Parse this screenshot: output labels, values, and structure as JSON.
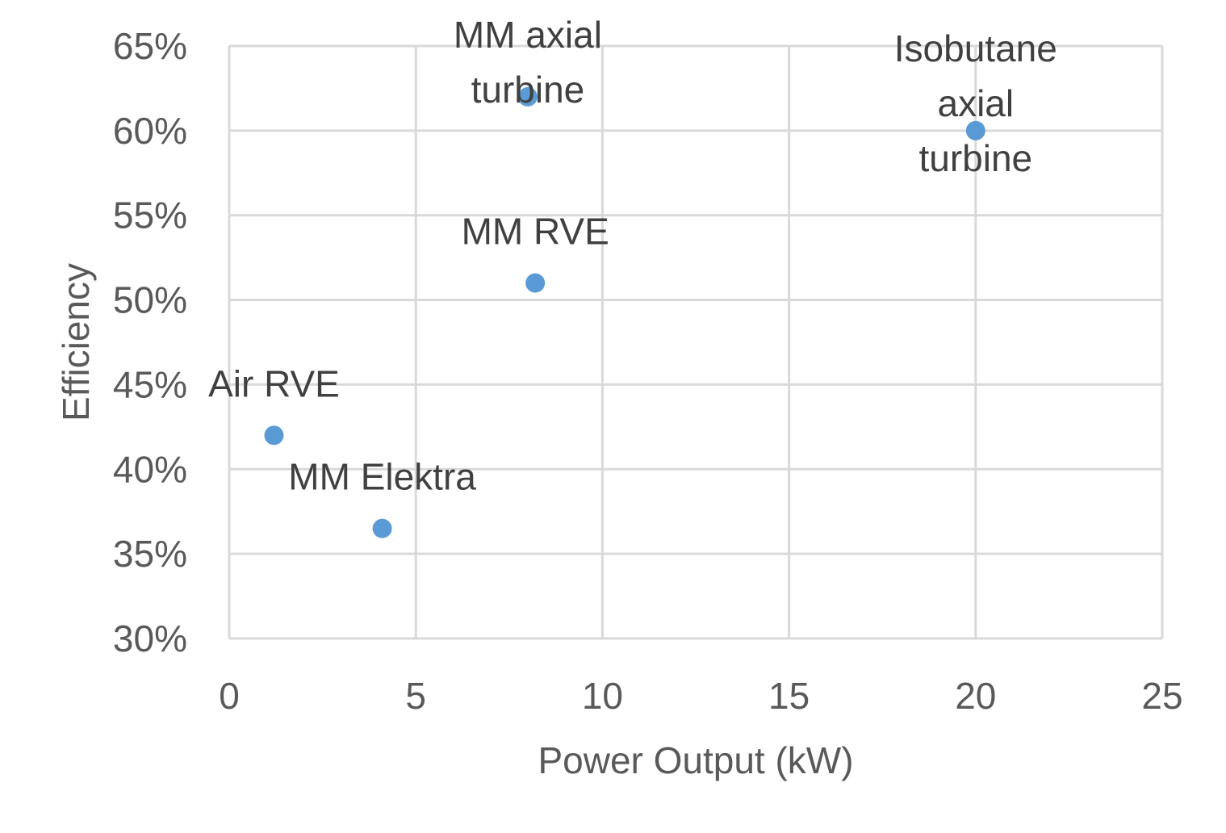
{
  "chart_data": {
    "type": "scatter",
    "xlabel": "Power Output (kW)",
    "ylabel": "Efficiency",
    "xlim": [
      0,
      25
    ],
    "ylim": [
      0.3,
      0.65
    ],
    "xticks": [
      0,
      5,
      10,
      15,
      20,
      25
    ],
    "yticks": [
      0.3,
      0.35,
      0.4,
      0.45,
      0.5,
      0.55,
      0.6,
      0.65
    ],
    "xtick_labels": [
      "0",
      "5",
      "10",
      "15",
      "20",
      "25"
    ],
    "ytick_labels": [
      "30%",
      "35%",
      "40%",
      "45%",
      "50%",
      "55%",
      "60%",
      "65%"
    ],
    "grid": true,
    "marker_color": "#5B9BD5",
    "points": [
      {
        "label": "MM axial turbine",
        "label_lines": [
          "MM axial",
          "turbine"
        ],
        "x": 8.0,
        "y": 0.62
      },
      {
        "label": "Isobutane axial turbine",
        "label_lines": [
          "Isobutane",
          "axial",
          "turbine"
        ],
        "x": 20.0,
        "y": 0.6
      },
      {
        "label": "MM RVE",
        "label_lines": [
          "MM RVE"
        ],
        "x": 8.2,
        "y": 0.51
      },
      {
        "label": "Air RVE",
        "label_lines": [
          "Air RVE"
        ],
        "x": 1.2,
        "y": 0.42
      },
      {
        "label": "MM Elektra",
        "label_lines": [
          "MM Elektra"
        ],
        "x": 4.1,
        "y": 0.365
      }
    ]
  }
}
